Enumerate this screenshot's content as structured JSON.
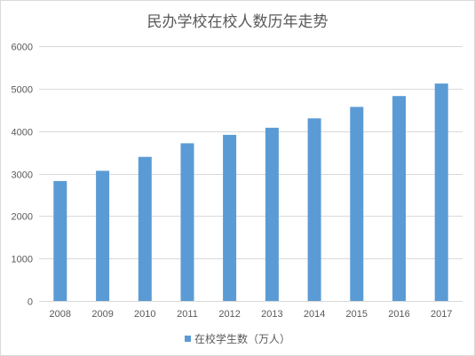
{
  "colors": {
    "bar": "#5b9bd5",
    "grid": "#d9d9d9",
    "text": "#595959"
  },
  "chart_data": {
    "type": "bar",
    "title": "民办学校在校人数历年走势",
    "xlabel": "",
    "ylabel": "",
    "categories": [
      "2008",
      "2009",
      "2010",
      "2011",
      "2012",
      "2013",
      "2014",
      "2015",
      "2016",
      "2017"
    ],
    "series": [
      {
        "name": "在校学生数（万人）",
        "values": [
          2825,
          3065,
          3393,
          3713,
          3911,
          4078,
          4301,
          4571,
          4825,
          5120
        ]
      }
    ],
    "ylim": [
      0,
      6000
    ],
    "yticks": [
      "0",
      "1000",
      "2000",
      "3000",
      "4000",
      "5000",
      "6000"
    ],
    "grid": true,
    "legend_position": "bottom"
  }
}
